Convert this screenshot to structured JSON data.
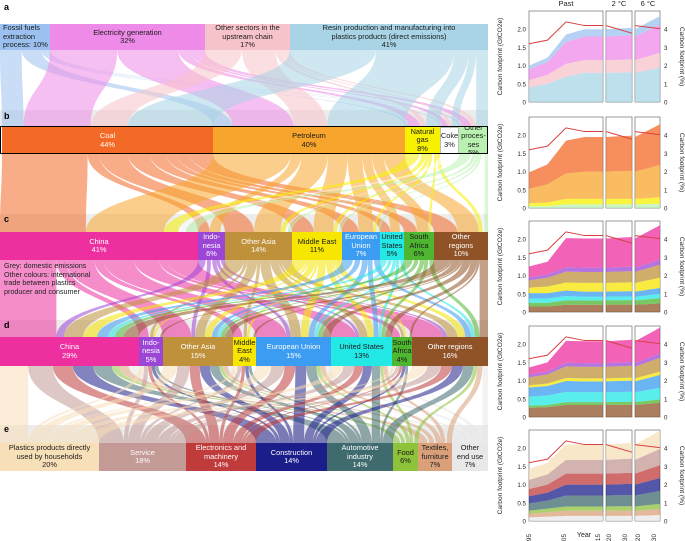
{
  "panels": {
    "a": {
      "letter": "a",
      "boxes": [
        {
          "line1": "Fossil fuels\nextraction\nprocess: 10%",
          "line2": "",
          "color": "#9cc1f0"
        },
        {
          "line1": "Electricity generation",
          "line2": "32%",
          "color": "#ee8ae8"
        },
        {
          "line1": "Other sectors in the\nupstream chain",
          "line2": "17%",
          "color": "#f7c3cb"
        },
        {
          "line1": "Resin production and manufacturing into\nplastics products (direct emissions)",
          "line2": "41%",
          "color": "#a8d4e6"
        }
      ]
    },
    "b": {
      "letter": "b",
      "boxes": [
        {
          "line1": "Coal",
          "line2": "44%",
          "color": "#f36a27"
        },
        {
          "line1": "Petroleum",
          "line2": "40%",
          "color": "#f7a52c"
        },
        {
          "line1": "Natural\ngas",
          "line2": "8%",
          "color": "#f7f000"
        },
        {
          "line1": "Coke",
          "line2": "3%",
          "color": "#ffffff"
        },
        {
          "line1": "Other\nproces-\nses",
          "line2": "5%",
          "color": "#b9f2b0"
        }
      ]
    },
    "c": {
      "letter": "c",
      "boxes": [
        {
          "line1": "China",
          "line2": "41%",
          "color": "#ee2fa0"
        },
        {
          "line1": "Indo-\nnesia",
          "line2": "6%",
          "color": "#9c46d6"
        },
        {
          "line1": "Other Asia",
          "line2": "14%",
          "color": "#bf913a"
        },
        {
          "line1": "Middle East",
          "line2": "11%",
          "color": "#f6e600"
        },
        {
          "line1": "European\nUnion",
          "line2": "7%",
          "color": "#3b9cf2"
        },
        {
          "line1": "United\nStates",
          "line2": "5%",
          "color": "#22e8e6"
        },
        {
          "line1": "South\nAfrica",
          "line2": "6%",
          "color": "#4eb630"
        },
        {
          "line1": "Other\nregions",
          "line2": "10%",
          "color": "#8f5327"
        }
      ]
    },
    "d": {
      "letter": "d",
      "boxes": [
        {
          "line1": "China",
          "line2": "29%",
          "color": "#ee2fa0"
        },
        {
          "line1": "Indo-\nnesia",
          "line2": "5%",
          "color": "#9c46d6"
        },
        {
          "line1": "Other Asia",
          "line2": "15%",
          "color": "#bf913a"
        },
        {
          "line1": "Middle\nEast",
          "line2": "4%",
          "color": "#f6e600"
        },
        {
          "line1": "European Union",
          "line2": "15%",
          "color": "#3b9cf2"
        },
        {
          "line1": "United States",
          "line2": "13%",
          "color": "#22e8e6"
        },
        {
          "line1": "South\nAfrica",
          "line2": "4%",
          "color": "#4eb630"
        },
        {
          "line1": "Other regions",
          "line2": "16%",
          "color": "#8f5327"
        }
      ]
    },
    "e": {
      "letter": "e",
      "boxes": [
        {
          "line1": "Plastics products directly\nused by households",
          "line2": "20%",
          "color": "#f7dfb8"
        },
        {
          "line1": "Service",
          "line2": "18%",
          "color": "#c39a96"
        },
        {
          "line1": "Electronics and\nmachinery",
          "line2": "14%",
          "color": "#c03b3b"
        },
        {
          "line1": "Construction",
          "line2": "14%",
          "color": "#1b1d8a"
        },
        {
          "line1": "Automotive\nindustry",
          "line2": "14%",
          "color": "#3f6b6e"
        },
        {
          "line1": "Food",
          "line2": "6%",
          "color": "#8dc23a"
        },
        {
          "line1": "Textiles,\nfurniture",
          "line2": "7%",
          "color": "#d9a07a"
        },
        {
          "line1": "Other\nend use",
          "line2": "7%",
          "color": "#e8e8e8"
        }
      ]
    }
  },
  "note": {
    "line1": "Grey: domestic emissions",
    "line2": "Other colours: international",
    "line3": "trade between plastics",
    "line4": "producer and consumer"
  },
  "chart_data": [
    {
      "type": "area",
      "panel": "a",
      "column_titles": [
        "Past",
        "2 °C",
        "6 °C"
      ],
      "ylabel_left": "Carbon footprint (GtCO2e)",
      "ylabel_right": "Carbon footprint (%)",
      "ylim_left": [
        0,
        2.5
      ],
      "ylim_right": [
        0,
        5
      ],
      "yticks_left": [
        "0",
        "0.5",
        "1.0",
        "1.5",
        "2.0"
      ],
      "yticks_right": [
        "0",
        "1",
        "2",
        "3",
        "4"
      ],
      "x": [
        1995,
        2000,
        2005,
        2010,
        2015
      ],
      "series": [
        {
          "color": "#a8d4e6",
          "values": [
            0.4,
            0.5,
            0.7,
            0.8,
            0.8
          ]
        },
        {
          "color": "#f7c3cb",
          "values": [
            0.2,
            0.25,
            0.35,
            0.35,
            0.35
          ]
        },
        {
          "color": "#ee8ae8",
          "values": [
            0.3,
            0.35,
            0.6,
            0.65,
            0.65
          ]
        },
        {
          "color": "#9cc1f0",
          "values": [
            0.1,
            0.12,
            0.2,
            0.2,
            0.2
          ]
        }
      ],
      "line": {
        "color": "#d84040",
        "values": [
          1.6,
          1.7,
          2.2,
          2.1,
          2.1
        ]
      }
    },
    {
      "type": "area",
      "panel": "b",
      "ylabel_left": "Carbon footprint (GtCO2e)",
      "ylabel_right": "Carbon footprint (%)",
      "ylim_left": [
        0,
        2.5
      ],
      "yticks_left": [
        "0",
        "0.5",
        "1.0",
        "1.5",
        "2.0"
      ],
      "yticks_right": [
        "0",
        "1",
        "2",
        "3",
        "4"
      ],
      "x": [
        1995,
        2000,
        2005,
        2010,
        2015
      ],
      "series": [
        {
          "color": "#b9f2b0",
          "values": [
            0.05,
            0.05,
            0.1,
            0.1,
            0.1
          ]
        },
        {
          "color": "#f7f000",
          "values": [
            0.08,
            0.1,
            0.15,
            0.15,
            0.15
          ]
        },
        {
          "color": "#f7a52c",
          "values": [
            0.4,
            0.5,
            0.7,
            0.75,
            0.75
          ]
        },
        {
          "color": "#f36a27",
          "values": [
            0.45,
            0.55,
            0.9,
            0.95,
            0.95
          ]
        }
      ],
      "line": {
        "color": "#d84040",
        "values": [
          1.6,
          1.7,
          2.2,
          2.1,
          2.1
        ]
      }
    },
    {
      "type": "area",
      "panel": "c",
      "ylabel_left": "Carbon footprint (GtCO2e)",
      "ylabel_right": "Carbon footprint (%)",
      "ylim_left": [
        0,
        2.5
      ],
      "yticks_left": [
        "0",
        "0.5",
        "1.0",
        "1.5",
        "2.0"
      ],
      "yticks_right": [
        "0",
        "1",
        "2",
        "3",
        "4"
      ],
      "x": [
        1995,
        2000,
        2005,
        2010,
        2015
      ],
      "series": [
        {
          "color": "#8f5327",
          "values": [
            0.15,
            0.15,
            0.2,
            0.2,
            0.2
          ]
        },
        {
          "color": "#4eb630",
          "values": [
            0.1,
            0.1,
            0.12,
            0.12,
            0.12
          ]
        },
        {
          "color": "#22e8e6",
          "values": [
            0.12,
            0.12,
            0.12,
            0.1,
            0.1
          ]
        },
        {
          "color": "#3b9cf2",
          "values": [
            0.15,
            0.15,
            0.15,
            0.14,
            0.14
          ]
        },
        {
          "color": "#f6e600",
          "values": [
            0.15,
            0.18,
            0.22,
            0.24,
            0.24
          ]
        },
        {
          "color": "#bf913a",
          "values": [
            0.2,
            0.24,
            0.3,
            0.3,
            0.3
          ]
        },
        {
          "color": "#9c46d6",
          "values": [
            0.08,
            0.09,
            0.12,
            0.12,
            0.12
          ]
        },
        {
          "color": "#ee2fa0",
          "values": [
            0.3,
            0.35,
            0.8,
            0.8,
            0.8
          ]
        }
      ],
      "line": {
        "color": "#d84040",
        "values": [
          1.6,
          1.7,
          2.2,
          2.1,
          2.1
        ]
      }
    },
    {
      "type": "area",
      "panel": "d",
      "ylabel_left": "Carbon footprint (GtCO2e)",
      "ylabel_right": "Carbon footprint (%)",
      "ylim_left": [
        0,
        2.5
      ],
      "yticks_left": [
        "0",
        "0.5",
        "1.0",
        "1.5",
        "2.0"
      ],
      "yticks_right": [
        "0",
        "1",
        "2",
        "3",
        "4"
      ],
      "x": [
        1995,
        2000,
        2005,
        2010,
        2015
      ],
      "series": [
        {
          "color": "#8f5327",
          "values": [
            0.25,
            0.27,
            0.33,
            0.33,
            0.33
          ]
        },
        {
          "color": "#4eb630",
          "values": [
            0.06,
            0.06,
            0.08,
            0.08,
            0.08
          ]
        },
        {
          "color": "#22e8e6",
          "values": [
            0.25,
            0.26,
            0.28,
            0.27,
            0.27
          ]
        },
        {
          "color": "#3b9cf2",
          "values": [
            0.25,
            0.26,
            0.3,
            0.3,
            0.3
          ]
        },
        {
          "color": "#f6e600",
          "values": [
            0.06,
            0.07,
            0.08,
            0.08,
            0.08
          ]
        },
        {
          "color": "#bf913a",
          "values": [
            0.22,
            0.25,
            0.32,
            0.32,
            0.32
          ]
        },
        {
          "color": "#9c46d6",
          "values": [
            0.07,
            0.08,
            0.1,
            0.1,
            0.1
          ]
        },
        {
          "color": "#ee2fa0",
          "values": [
            0.2,
            0.25,
            0.6,
            0.6,
            0.6
          ]
        }
      ],
      "line": {
        "color": "#d84040",
        "values": [
          1.6,
          1.7,
          2.2,
          2.1,
          2.1
        ]
      }
    },
    {
      "type": "area",
      "panel": "e",
      "xlabel": "Year",
      "xticks": [
        "1995",
        "2005",
        "2015",
        "2020",
        "2030",
        "2020",
        "2030"
      ],
      "ylabel_left": "Carbon footprint (GtCO2e)",
      "ylabel_right": "Carbon footprint (%)",
      "ylim_left": [
        0,
        2.5
      ],
      "yticks_left": [
        "0",
        "0.5",
        "1.0",
        "1.5",
        "2.0"
      ],
      "yticks_right": [
        "0",
        "1",
        "2",
        "3",
        "4"
      ],
      "x": [
        1995,
        2000,
        2005,
        2010,
        2015
      ],
      "series": [
        {
          "color": "#e8e8e8",
          "values": [
            0.1,
            0.12,
            0.14,
            0.14,
            0.14
          ]
        },
        {
          "color": "#d9a07a",
          "values": [
            0.1,
            0.12,
            0.14,
            0.14,
            0.14
          ]
        },
        {
          "color": "#8dc23a",
          "values": [
            0.08,
            0.1,
            0.12,
            0.12,
            0.12
          ]
        },
        {
          "color": "#3f6b6e",
          "values": [
            0.2,
            0.22,
            0.3,
            0.3,
            0.3
          ]
        },
        {
          "color": "#1b1d8a",
          "values": [
            0.2,
            0.22,
            0.3,
            0.3,
            0.3
          ]
        },
        {
          "color": "#c03b3b",
          "values": [
            0.2,
            0.22,
            0.3,
            0.3,
            0.3
          ]
        },
        {
          "color": "#c39a96",
          "values": [
            0.25,
            0.28,
            0.38,
            0.38,
            0.38
          ]
        },
        {
          "color": "#f7dfb8",
          "values": [
            0.3,
            0.32,
            0.42,
            0.42,
            0.42
          ]
        }
      ],
      "line": {
        "color": "#d84040",
        "values": [
          1.6,
          1.7,
          2.2,
          2.1,
          2.1
        ]
      }
    }
  ]
}
